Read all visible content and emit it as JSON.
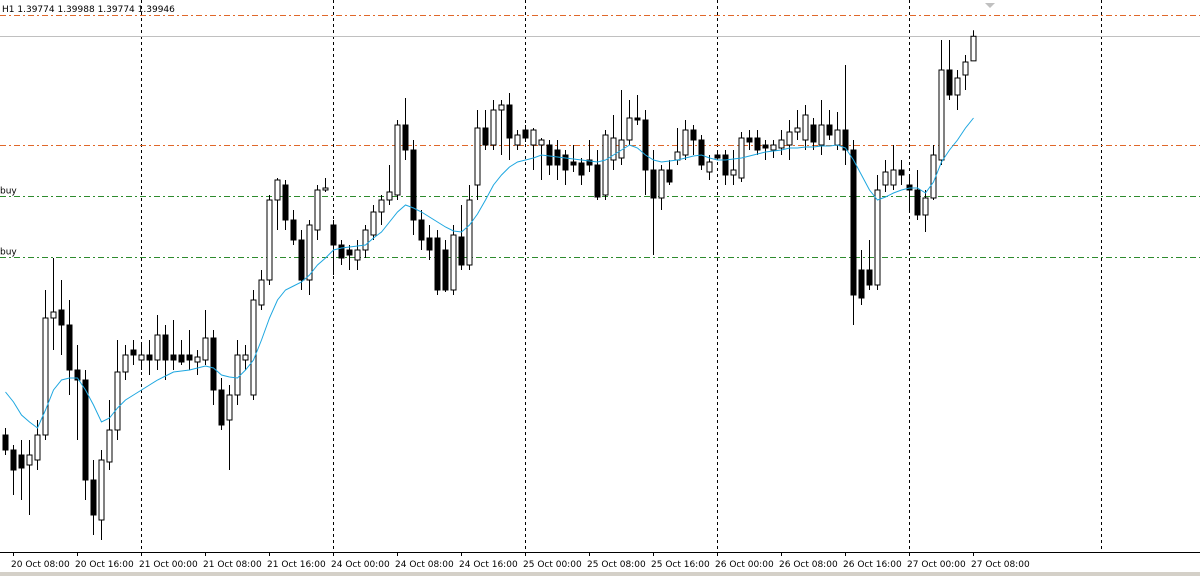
{
  "chart_data": {
    "type": "candlestick",
    "timeframe": "H1",
    "ylim": [
      1.36364,
      1.402
    ],
    "up_color": "#ffffff",
    "down_color": "#000000",
    "wick_color": "#000000",
    "categories": [
      null,
      "20 Oct 08:00",
      null,
      null,
      null,
      null,
      null,
      null,
      null,
      "20 Oct 16:00",
      null,
      null,
      null,
      null,
      null,
      null,
      null,
      "21 Oct 00:00",
      null,
      null,
      null,
      null,
      null,
      null,
      null,
      "21 Oct 08:00",
      null,
      null,
      null,
      null,
      null,
      null,
      null,
      "21 Oct 16:00",
      null,
      null,
      null,
      null,
      null,
      null,
      null,
      "24 Oct 00:00",
      null,
      null,
      null,
      null,
      null,
      null,
      null,
      "24 Oct 08:00",
      null,
      null,
      null,
      null,
      null,
      null,
      null,
      "24 Oct 16:00",
      null,
      null,
      null,
      null,
      null,
      null,
      null,
      "25 Oct 00:00",
      null,
      null,
      null,
      null,
      null,
      null,
      null,
      "25 Oct 08:00",
      null,
      null,
      null,
      null,
      null,
      null,
      null,
      "25 Oct 16:00",
      null,
      null,
      null,
      null,
      null,
      null,
      null,
      "26 Oct 00:00",
      null,
      null,
      null,
      null,
      null,
      null,
      null,
      "26 Oct 08:00",
      null,
      null,
      null,
      null,
      null,
      null,
      null,
      "26 Oct 16:00",
      null,
      null,
      null,
      null,
      null,
      null,
      null,
      "27 Oct 00:00",
      null,
      null,
      null,
      null,
      null,
      null,
      null,
      "27 Oct 08:00"
    ],
    "candles": [
      [
        1.37155,
        1.37204,
        1.37015,
        1.3705
      ],
      [
        1.3705,
        1.37085,
        1.36735,
        1.3691
      ],
      [
        1.37015,
        1.3712,
        1.367,
        1.36924
      ],
      [
        1.36945,
        1.3712,
        1.36595,
        1.37015
      ],
      [
        1.3698,
        1.3726,
        1.3691,
        1.37155
      ],
      [
        1.37155,
        1.3817,
        1.3712,
        1.37974
      ],
      [
        1.37974,
        1.38394,
        1.3775,
        1.38016
      ],
      [
        1.3803,
        1.3824,
        1.37715,
        1.37925
      ],
      [
        1.37925,
        1.381,
        1.37435,
        1.3761
      ],
      [
        1.3761,
        1.37785,
        1.3712,
        1.3754
      ],
      [
        1.3754,
        1.3761,
        1.367,
        1.3684
      ],
      [
        1.3684,
        1.3698,
        1.36455,
        1.36595
      ],
      [
        1.3656,
        1.3705,
        1.3642,
        1.3698
      ],
      [
        1.36966,
        1.374,
        1.3691,
        1.3719
      ],
      [
        1.3719,
        1.3782,
        1.3712,
        1.37596
      ],
      [
        1.37596,
        1.37785,
        1.3754,
        1.37715
      ],
      [
        1.3775,
        1.3782,
        1.37645,
        1.37715
      ],
      [
        1.3768,
        1.37785,
        1.3761,
        1.37715
      ],
      [
        1.37715,
        1.3782,
        1.37575,
        1.3768
      ],
      [
        1.3768,
        1.37995,
        1.3761,
        1.37855
      ],
      [
        1.37855,
        1.37925,
        1.3754,
        1.3768
      ],
      [
        1.37715,
        1.3796,
        1.3761,
        1.3768
      ],
      [
        1.37715,
        1.3782,
        1.37645,
        1.37666
      ],
      [
        1.37715,
        1.3789,
        1.3761,
        1.3768
      ],
      [
        1.37666,
        1.3775,
        1.37575,
        1.37701
      ],
      [
        1.3768,
        1.3803,
        1.37645,
        1.37834
      ],
      [
        1.37834,
        1.3789,
        1.37365,
        1.3747
      ],
      [
        1.3747,
        1.37554,
        1.3719,
        1.37225
      ],
      [
        1.3726,
        1.37505,
        1.3691,
        1.37435
      ],
      [
        1.37435,
        1.3782,
        1.37365,
        1.37715
      ],
      [
        1.3768,
        1.37785,
        1.3761,
        1.37715
      ],
      [
        1.37435,
        1.3817,
        1.374,
        1.381
      ],
      [
        1.38065,
        1.3831,
        1.3803,
        1.3824
      ],
      [
        1.3824,
        1.38835,
        1.38205,
        1.388
      ],
      [
        1.388,
        1.38954,
        1.3859,
        1.3894
      ],
      [
        1.38905,
        1.3894,
        1.3859,
        1.3866
      ],
      [
        1.3866,
        1.3873,
        1.38485,
        1.3852
      ],
      [
        1.3852,
        1.3859,
        1.3817,
        1.3824
      ],
      [
        1.3824,
        1.3866,
        1.38135,
        1.38625
      ],
      [
        1.3859,
        1.38905,
        1.3852,
        1.3887
      ],
      [
        1.3887,
        1.38954,
        1.38856,
        1.38884
      ],
      [
        1.38625,
        1.3866,
        1.38275,
        1.38485
      ],
      [
        1.38485,
        1.3852,
        1.38345,
        1.38394
      ],
      [
        1.3845,
        1.38485,
        1.3831,
        1.38415
      ],
      [
        1.3838,
        1.3852,
        1.3831,
        1.3845
      ],
      [
        1.3845,
        1.38625,
        1.38394,
        1.3859
      ],
      [
        1.38555,
        1.38765,
        1.3852,
        1.38716
      ],
      [
        1.38716,
        1.38835,
        1.38625,
        1.388
      ],
      [
        1.388,
        1.39045,
        1.38765,
        1.38856
      ],
      [
        1.38835,
        1.3936,
        1.388,
        1.39325
      ],
      [
        1.39325,
        1.39514,
        1.3908,
        1.3915
      ],
      [
        1.3915,
        1.3922,
        1.38555,
        1.3866
      ],
      [
        1.3866,
        1.3873,
        1.3845,
        1.3852
      ],
      [
        1.38534,
        1.38625,
        1.3838,
        1.3845
      ],
      [
        1.38534,
        1.3859,
        1.38135,
        1.3817
      ],
      [
        1.3845,
        1.3852,
        1.38156,
        1.3817
      ],
      [
        1.3817,
        1.38625,
        1.38135,
        1.38555
      ],
      [
        1.38541,
        1.38765,
        1.3831,
        1.38345
      ],
      [
        1.38345,
        1.38905,
        1.3831,
        1.388
      ],
      [
        1.38905,
        1.3943,
        1.388,
        1.39304
      ],
      [
        1.39304,
        1.3943,
        1.3915,
        1.39185
      ],
      [
        1.39185,
        1.395,
        1.3915,
        1.3943
      ],
      [
        1.3943,
        1.395,
        1.39115,
        1.39465
      ],
      [
        1.39465,
        1.39549,
        1.3908,
        1.39234
      ],
      [
        1.39185,
        1.3929,
        1.3915,
        1.39255
      ],
      [
        1.3929,
        1.39325,
        1.39206,
        1.39234
      ],
      [
        1.39185,
        1.39304,
        1.3901,
        1.3929
      ],
      [
        1.39185,
        1.39234,
        1.3894,
        1.3922
      ],
      [
        1.39185,
        1.3922,
        1.38975,
        1.39045
      ],
      [
        1.3915,
        1.3922,
        1.3894,
        1.39045
      ],
      [
        1.39115,
        1.3915,
        1.38905,
        1.3901
      ],
      [
        1.39066,
        1.39185,
        1.38996,
        1.39045
      ],
      [
        1.39059,
        1.39094,
        1.38905,
        1.38975
      ],
      [
        1.3908,
        1.3922,
        1.38996,
        1.39045
      ],
      [
        1.39045,
        1.3915,
        1.388,
        1.38821
      ],
      [
        1.38835,
        1.3929,
        1.388,
        1.39255
      ],
      [
        1.3908,
        1.39395,
        1.3901,
        1.39234
      ],
      [
        1.39094,
        1.3957,
        1.39045,
        1.3922
      ],
      [
        1.3922,
        1.395,
        1.39185,
        1.39374
      ],
      [
        1.39374,
        1.39535,
        1.39325,
        1.3936
      ],
      [
        1.3936,
        1.3943,
        1.38835,
        1.3901
      ],
      [
        1.3901,
        1.3915,
        1.38415,
        1.38814
      ],
      [
        1.38814,
        1.39045,
        1.3873,
        1.3901
      ],
      [
        1.3901,
        1.3908,
        1.38905,
        1.38926
      ],
      [
        1.3908,
        1.39304,
        1.39045,
        1.39136
      ],
      [
        1.39115,
        1.3936,
        1.3908,
        1.3929
      ],
      [
        1.3929,
        1.39325,
        1.39115,
        1.3922
      ],
      [
        1.3922,
        1.39255,
        1.3901,
        1.39045
      ],
      [
        1.38996,
        1.39115,
        1.3894,
        1.39066
      ],
      [
        1.39115,
        1.3915,
        1.3908,
        1.39094
      ],
      [
        1.39115,
        1.3915,
        1.38905,
        1.38975
      ],
      [
        1.38975,
        1.3915,
        1.38905,
        1.3901
      ],
      [
        1.38954,
        1.39276,
        1.38926,
        1.39234
      ],
      [
        1.39234,
        1.3929,
        1.3915,
        1.39206
      ],
      [
        1.39234,
        1.3929,
        1.39115,
        1.3915
      ],
      [
        1.39185,
        1.3922,
        1.3908,
        1.39164
      ],
      [
        1.3915,
        1.3922,
        1.39094,
        1.39185
      ],
      [
        1.39164,
        1.3929,
        1.39115,
        1.3922
      ],
      [
        1.39185,
        1.3936,
        1.3908,
        1.39276
      ],
      [
        1.39276,
        1.3943,
        1.3922,
        1.39304
      ],
      [
        1.3922,
        1.39465,
        1.3915,
        1.39395
      ],
      [
        1.39325,
        1.39374,
        1.3915,
        1.39206
      ],
      [
        1.39185,
        1.395,
        1.39115,
        1.39325
      ],
      [
        1.39325,
        1.3943,
        1.3922,
        1.39255
      ],
      [
        1.39185,
        1.39416,
        1.3915,
        1.3929
      ],
      [
        1.3929,
        1.39745,
        1.39045,
        1.3915
      ],
      [
        1.3915,
        1.3922,
        1.37925,
        1.38135
      ],
      [
        1.3831,
        1.3845,
        1.38065,
        1.38114
      ],
      [
        1.3831,
        1.3852,
        1.3817,
        1.38205
      ],
      [
        1.38205,
        1.38975,
        1.3817,
        1.3887
      ],
      [
        1.38905,
        1.3908,
        1.38856,
        1.38996
      ],
      [
        1.38905,
        1.39185,
        1.3887,
        1.3901
      ],
      [
        1.3901,
        1.3908,
        1.38905,
        1.38975
      ],
      [
        1.38905,
        1.38975,
        1.3873,
        1.3887
      ],
      [
        1.3887,
        1.3901,
        1.3866,
        1.38695
      ],
      [
        1.38695,
        1.3887,
        1.38576,
        1.38814
      ],
      [
        1.38814,
        1.39185,
        1.388,
        1.39115
      ],
      [
        1.3908,
        1.3992,
        1.39045,
        1.3971
      ],
      [
        1.3971,
        1.3992,
        1.395,
        1.39535
      ],
      [
        1.39535,
        1.3971,
        1.3943,
        1.39654
      ],
      [
        1.39675,
        1.39815,
        1.3957,
        1.39766
      ],
      [
        1.39774,
        1.39988,
        1.39774,
        1.39946
      ]
    ],
    "ma": {
      "color": "#1ea7e0",
      "values": [
        1.37456,
        1.37386,
        1.37295,
        1.37246,
        1.37204,
        1.3733,
        1.3747,
        1.3754,
        1.37554,
        1.37554,
        1.3747,
        1.37365,
        1.37246,
        1.37274,
        1.37344,
        1.374,
        1.37435,
        1.3747,
        1.37505,
        1.3754,
        1.37568,
        1.37596,
        1.37603,
        1.3761,
        1.37624,
        1.37638,
        1.37624,
        1.37575,
        1.37561,
        1.37554,
        1.3761,
        1.3768,
        1.3782,
        1.37974,
        1.381,
        1.3817,
        1.38198,
        1.38226,
        1.38275,
        1.38345,
        1.38394,
        1.3845,
        1.38464,
        1.38471,
        1.38478,
        1.38485,
        1.38534,
        1.38576,
        1.38646,
        1.38716,
        1.38765,
        1.38744,
        1.38716,
        1.38681,
        1.38646,
        1.38611,
        1.38583,
        1.38576,
        1.38625,
        1.38702,
        1.388,
        1.38905,
        1.38975,
        1.39031,
        1.39066,
        1.3908,
        1.39094,
        1.39115,
        1.39108,
        1.39101,
        1.39094,
        1.39087,
        1.3908,
        1.39073,
        1.39066,
        1.3908,
        1.39115,
        1.3915,
        1.39185,
        1.39164,
        1.39115,
        1.3908,
        1.39066,
        1.39073,
        1.3908,
        1.39094,
        1.39108,
        1.39115,
        1.39094,
        1.3908,
        1.3908,
        1.39087,
        1.39094,
        1.39108,
        1.39122,
        1.39136,
        1.39143,
        1.3915,
        1.39164,
        1.39164,
        1.39171,
        1.39171,
        1.39178,
        1.39178,
        1.39185,
        1.39164,
        1.3908,
        1.38975,
        1.3887,
        1.388,
        1.38821,
        1.38849,
        1.3887,
        1.38884,
        1.38884,
        1.38849,
        1.38926,
        1.39066,
        1.3915,
        1.3922,
        1.39304,
        1.39374
      ]
    },
    "levels": [
      {
        "value": 1.40095,
        "color": "#e0682a"
      },
      {
        "value": 1.39185,
        "color": "#e0682a"
      },
      {
        "value": 1.38828,
        "color": "#2e8b2e",
        "label": "buy"
      },
      {
        "value": 1.38401,
        "color": "#2e8b2e",
        "label": "buy"
      }
    ],
    "bid_line_color": "#c0c0c0"
  }
}
